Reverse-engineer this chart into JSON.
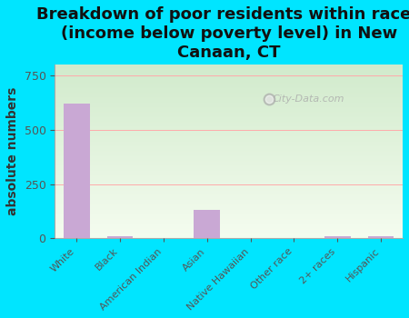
{
  "title": "Breakdown of poor residents within races\n(income below poverty level) in New\nCanaan, CT",
  "categories": [
    "White",
    "Black",
    "American Indian",
    "Asian",
    "Native Hawaiian",
    "Other race",
    "2+ races",
    "Hispanic"
  ],
  "values": [
    620,
    10,
    0,
    130,
    0,
    0,
    10,
    10
  ],
  "bar_color": "#c9a8d4",
  "ylabel": "absolute numbers",
  "ylim": [
    0,
    800
  ],
  "yticks": [
    0,
    250,
    500,
    750
  ],
  "background_color": "#00e5ff",
  "watermark": "City-Data.com",
  "title_fontsize": 13,
  "ylabel_fontsize": 10
}
